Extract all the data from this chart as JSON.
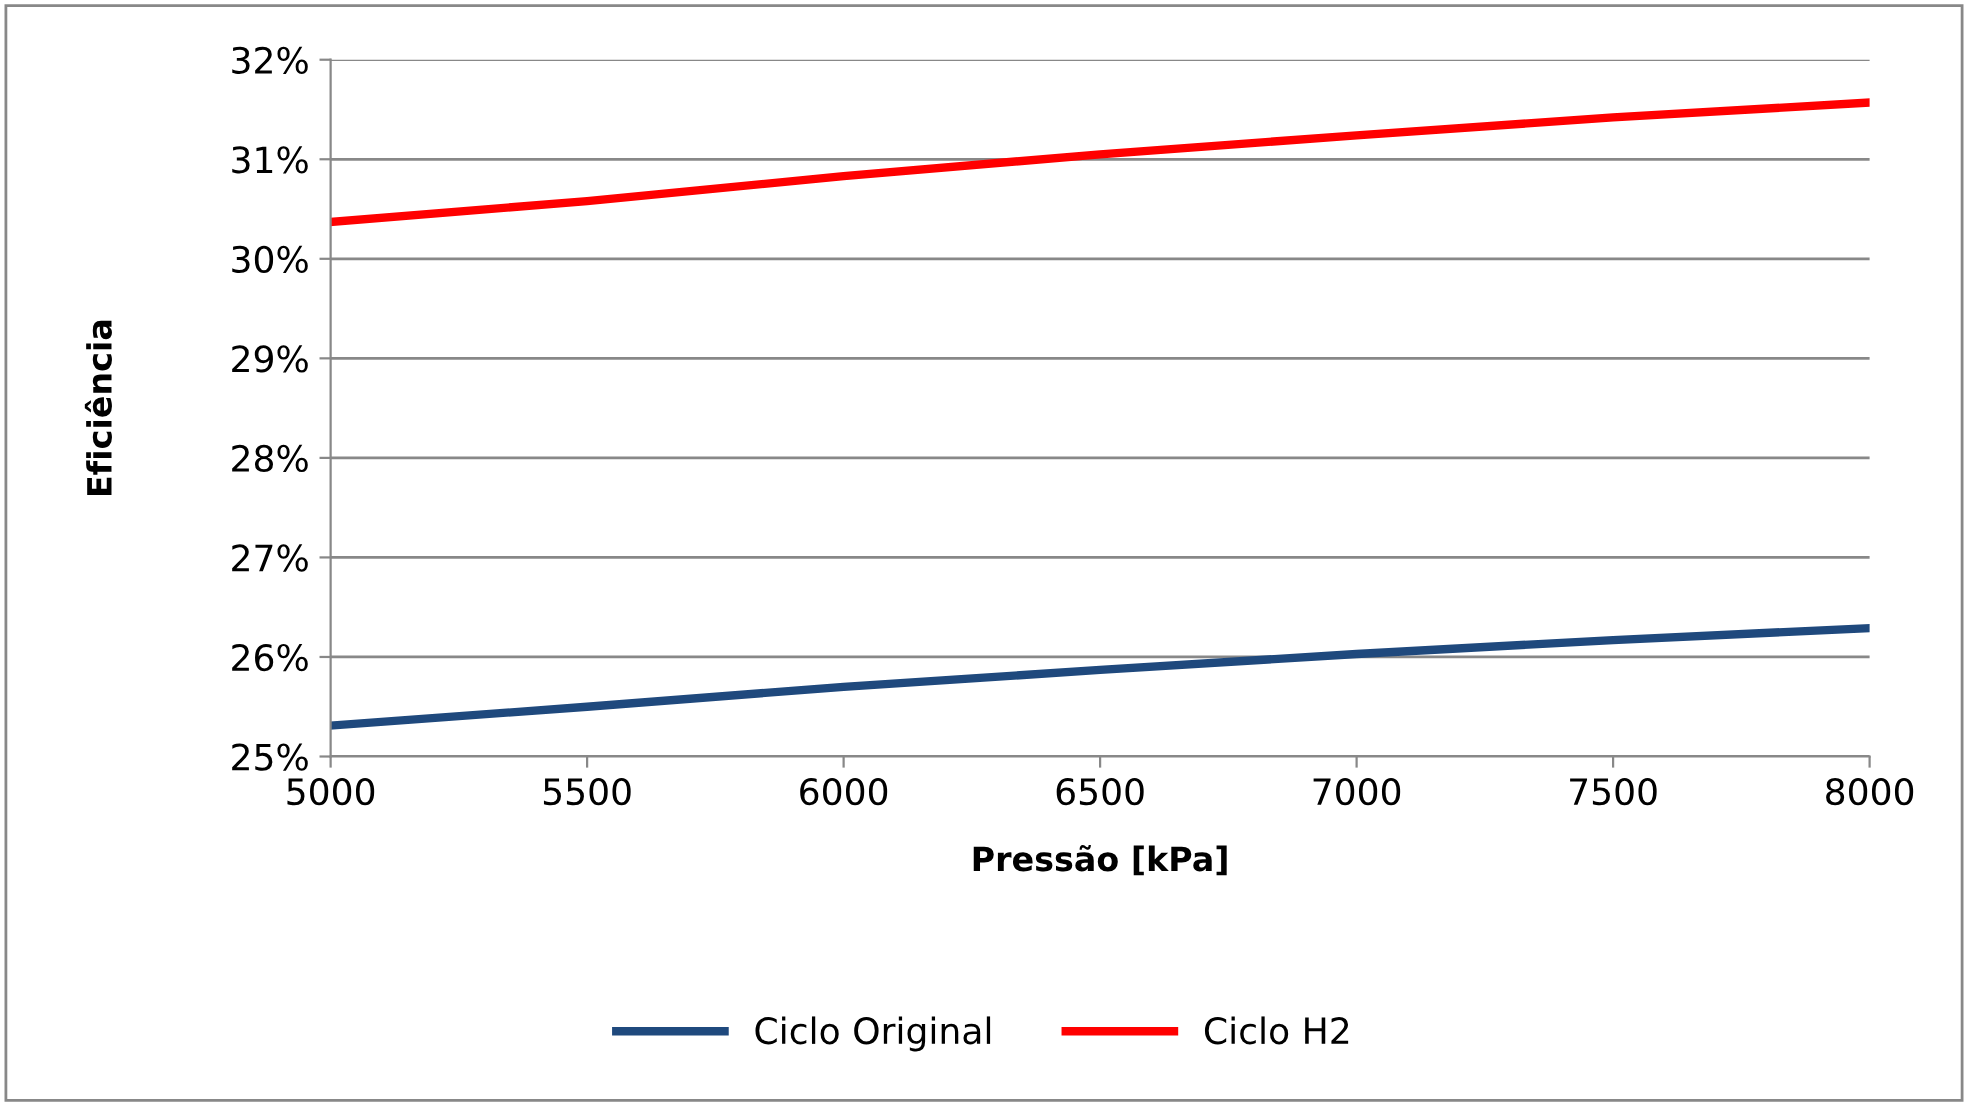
{
  "chart_data": {
    "type": "line",
    "xlabel": "Pressão [kPa]",
    "ylabel": "Eficiência",
    "x": [
      5000,
      5500,
      6000,
      6500,
      7000,
      7500,
      8000
    ],
    "series": [
      {
        "name": "Ciclo Original",
        "color": "#1f497d",
        "values": [
          25.31,
          25.5,
          25.7,
          25.87,
          26.03,
          26.17,
          26.29
        ]
      },
      {
        "name": "Ciclo H2",
        "color": "#ff0000",
        "values": [
          30.37,
          30.58,
          30.83,
          31.05,
          31.24,
          31.42,
          31.57
        ]
      }
    ],
    "xlim": [
      5000,
      8000
    ],
    "xticks": [
      5000,
      5500,
      6000,
      6500,
      7000,
      7500,
      8000
    ],
    "ylim": [
      25,
      32
    ],
    "yticks": [
      {
        "value": 25,
        "label": "25%"
      },
      {
        "value": 26,
        "label": "26%"
      },
      {
        "value": 27,
        "label": "27%"
      },
      {
        "value": 28,
        "label": "28%"
      },
      {
        "value": 29,
        "label": "29%"
      },
      {
        "value": 30,
        "label": "30%"
      },
      {
        "value": 31,
        "label": "31%"
      },
      {
        "value": 32,
        "label": "32%"
      }
    ],
    "grid": "y",
    "legend": "bottom",
    "marker": "none",
    "line_style": "solid"
  }
}
